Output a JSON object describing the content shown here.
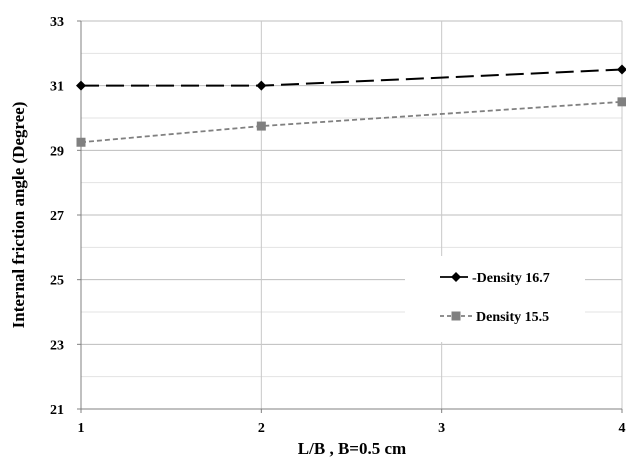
{
  "chart_data": {
    "type": "line",
    "xlabel": "L/B , B=0.5 cm",
    "ylabel": "Internal friction angle (Degree)",
    "x": [
      1,
      2,
      4
    ],
    "x_ticks": [
      1,
      2,
      3,
      4
    ],
    "y_ticks": [
      21,
      23,
      25,
      27,
      29,
      31,
      33
    ],
    "xlim": [
      1,
      4
    ],
    "ylim": [
      21,
      33
    ],
    "grid": true,
    "legend_position": "right",
    "series": [
      {
        "name": "Density 16.7",
        "values": [
          31.0,
          31.0,
          31.5
        ],
        "color": "#000000",
        "marker": "diamond",
        "dash": "long-dash"
      },
      {
        "name": "Density 15.5",
        "values": [
          29.25,
          29.75,
          30.5
        ],
        "color": "#808080",
        "marker": "square",
        "dash": "short-dash"
      }
    ]
  }
}
